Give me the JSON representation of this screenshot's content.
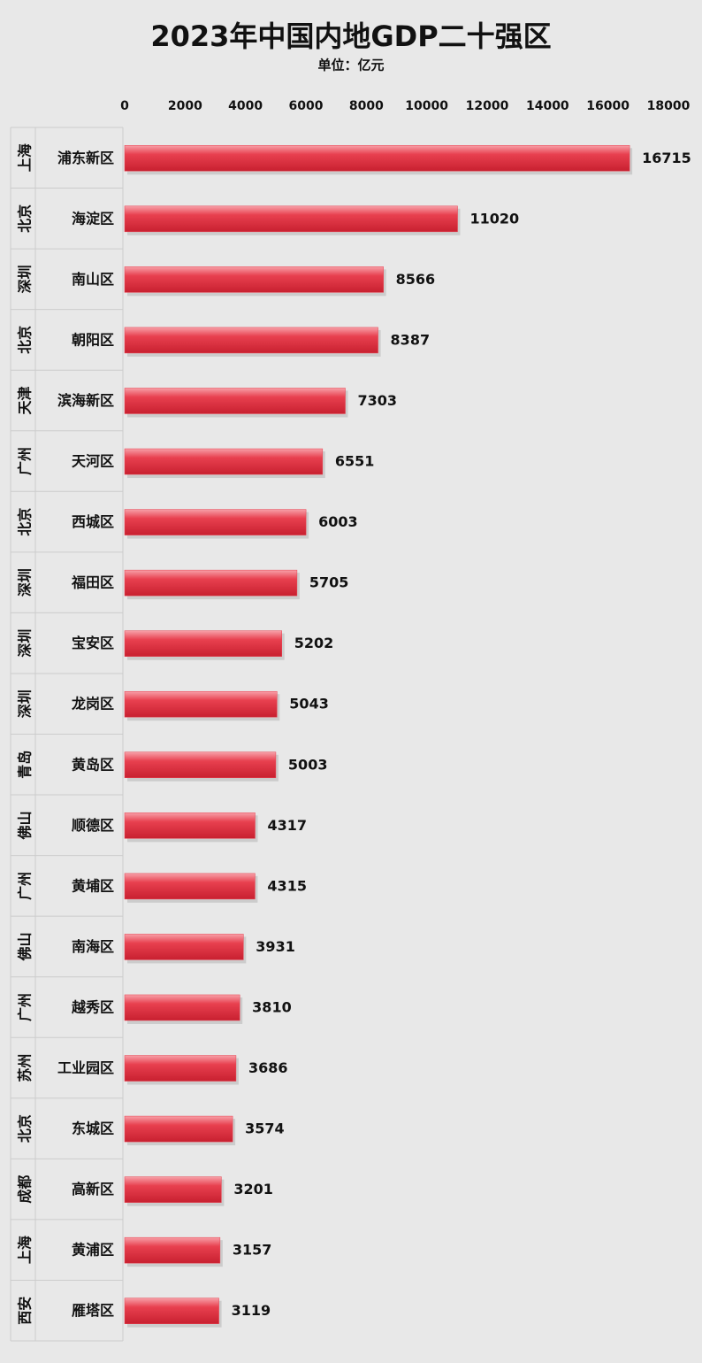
{
  "chart_data": {
    "type": "bar",
    "orientation": "horizontal",
    "title": "2023年中国内地GDP二十强区",
    "subtitle": "单位：亿元",
    "groups": [
      "上海",
      "北京",
      "深圳",
      "北京",
      "天津",
      "广州",
      "北京",
      "深圳",
      "深圳",
      "深圳",
      "青岛",
      "佛山",
      "广州",
      "佛山",
      "广州",
      "苏州",
      "北京",
      "成都",
      "上海",
      "西安"
    ],
    "categories": [
      "浦东新区",
      "海淀区",
      "南山区",
      "朝阳区",
      "滨海新区",
      "天河区",
      "西城区",
      "福田区",
      "宝安区",
      "龙岗区",
      "黄岛区",
      "顺德区",
      "黄埔区",
      "南海区",
      "越秀区",
      "工业园区",
      "东城区",
      "高新区",
      "黄浦区",
      "雁塔区"
    ],
    "values": [
      16715,
      11020,
      8566,
      8387,
      7303,
      6551,
      6003,
      5705,
      5202,
      5043,
      5003,
      4317,
      4315,
      3931,
      3810,
      3686,
      3574,
      3201,
      3157,
      3119
    ],
    "color": "#e8404f",
    "xlim": [
      0,
      18000
    ],
    "xticks": [
      0,
      2000,
      4000,
      6000,
      8000,
      10000,
      12000,
      14000,
      16000,
      18000
    ]
  }
}
